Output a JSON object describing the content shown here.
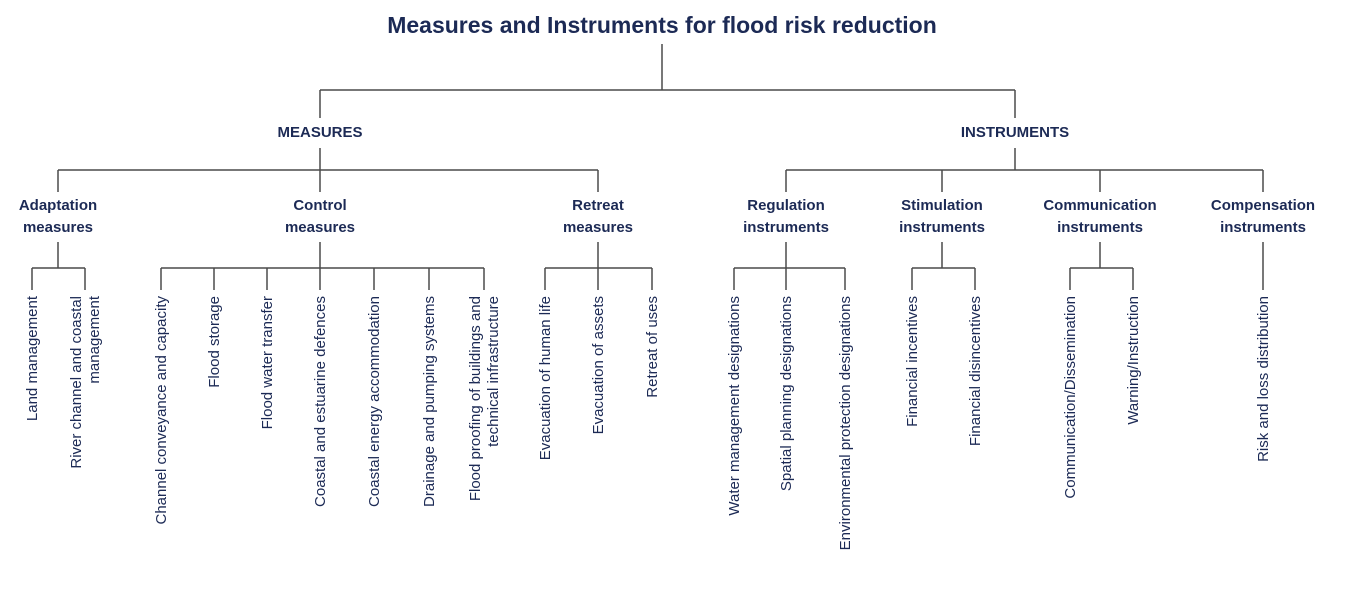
{
  "title": "Measures and Instruments for flood risk reduction",
  "branches": [
    {
      "label": "MEASURES",
      "groups": [
        {
          "label": [
            "Adaptation",
            "measures"
          ],
          "leaves": [
            [
              "Land management"
            ],
            [
              "River channel and coastal",
              "management"
            ]
          ]
        },
        {
          "label": [
            "Control",
            "measures"
          ],
          "leaves": [
            [
              "Channel conveyance and capacity"
            ],
            [
              "Flood storage"
            ],
            [
              "Flood water transfer"
            ],
            [
              "Coastal and estuarine defences"
            ],
            [
              "Coastal energy accommodation"
            ],
            [
              "Drainage and pumping systems"
            ],
            [
              "Flood proofing of buildings and",
              "technical infrastructure"
            ]
          ]
        },
        {
          "label": [
            "Retreat",
            "measures"
          ],
          "leaves": [
            [
              "Evacuation of human life"
            ],
            [
              "Evacuation of assets"
            ],
            [
              "Retreat of uses"
            ]
          ]
        }
      ]
    },
    {
      "label": "INSTRUMENTS",
      "groups": [
        {
          "label": [
            "Regulation",
            "instruments"
          ],
          "leaves": [
            [
              "Water management designations"
            ],
            [
              "Spatial planning designations"
            ],
            [
              "Environmental protection designations"
            ]
          ]
        },
        {
          "label": [
            "Stimulation",
            "instruments"
          ],
          "leaves": [
            [
              "Financial incentives"
            ],
            [
              "Financial disincentives"
            ]
          ]
        },
        {
          "label": [
            "Communication",
            "instruments"
          ],
          "leaves": [
            [
              "Communication/Dissemination"
            ],
            [
              "Warning/Instruction"
            ]
          ]
        },
        {
          "label": [
            "Compensation",
            "instruments"
          ],
          "leaves": [
            [
              "Risk and loss distribution"
            ]
          ]
        }
      ]
    }
  ]
}
